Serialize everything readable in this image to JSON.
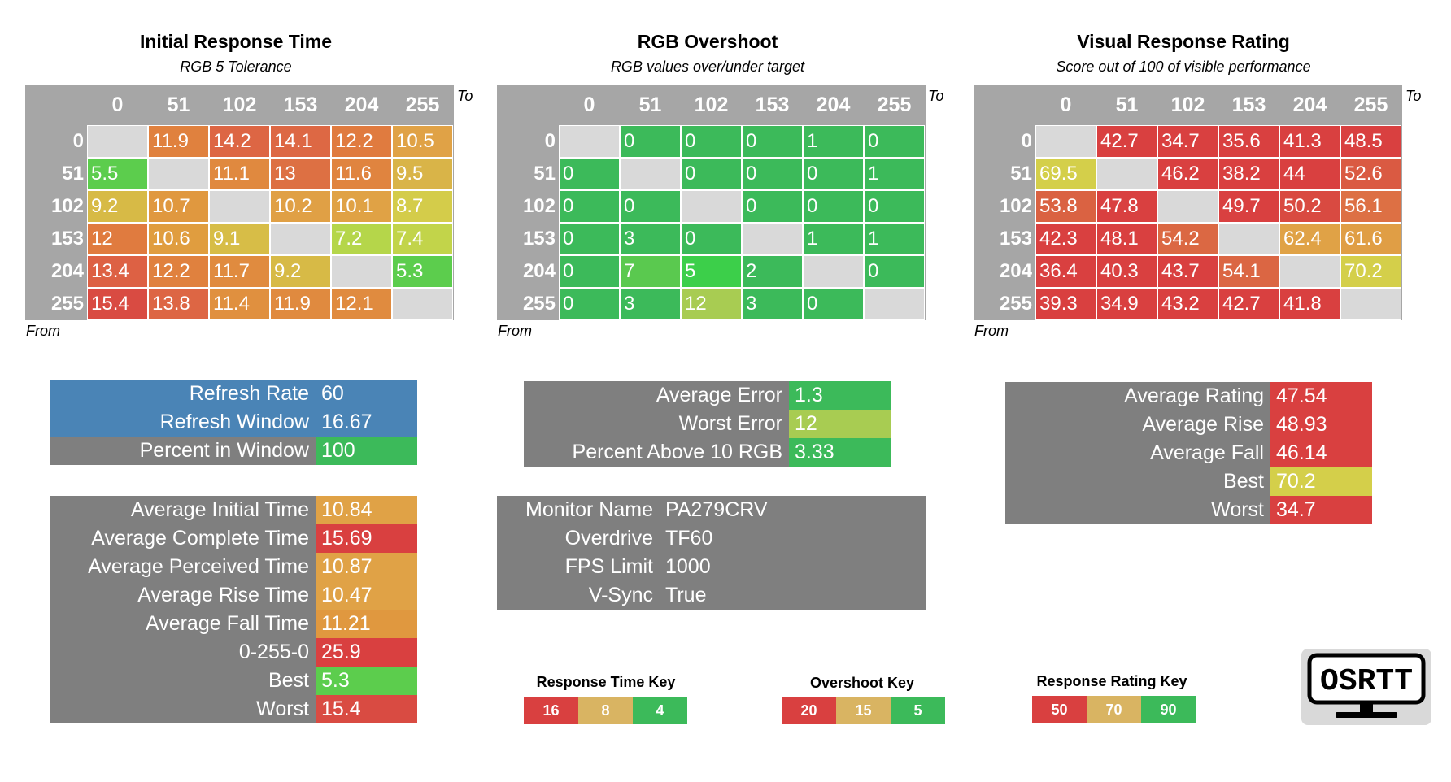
{
  "colors": {
    "grey": "#7f7f7f",
    "header_grey": "#a6a6a6",
    "diag": "#d9d9d9",
    "blue": "#4a84b6",
    "red": "#d94040",
    "orange": "#e0813e",
    "amber": "#d9a645",
    "yellow": "#d4cf4a",
    "green": "#3cba5a"
  },
  "sections": {
    "initial": {
      "title": "Initial Response Time",
      "subtitle": "RGB 5 Tolerance"
    },
    "overshoot": {
      "title": "RGB Overshoot",
      "subtitle": "RGB values over/under target"
    },
    "visual": {
      "title": "Visual Response Rating",
      "subtitle": "Score out of 100 of visible performance"
    }
  },
  "axis": {
    "levels": [
      "0",
      "51",
      "102",
      "153",
      "204",
      "255"
    ],
    "to_label": "To",
    "from_label": "From"
  },
  "matrices": {
    "initial": [
      [
        null,
        "11.9",
        "14.2",
        "14.1",
        "12.2",
        "10.5"
      ],
      [
        "5.5",
        null,
        "11.1",
        "13",
        "11.6",
        "9.5"
      ],
      [
        "9.2",
        "10.7",
        null,
        "10.2",
        "10.1",
        "8.7"
      ],
      [
        "12",
        "10.6",
        "9.1",
        null,
        "7.2",
        "7.4"
      ],
      [
        "13.4",
        "12.2",
        "11.7",
        "9.2",
        null,
        "5.3"
      ],
      [
        "15.4",
        "13.8",
        "11.4",
        "11.9",
        "12.1",
        null
      ]
    ],
    "initial_colors": [
      [
        null,
        "#e0813e",
        "#dd6644",
        "#dd6844",
        "#e07b3f",
        "#e0a246"
      ],
      [
        "#5ccd4d",
        null,
        "#e0893f",
        "#dd7043",
        "#e0843f",
        "#d9b448"
      ],
      [
        "#d7ba46",
        "#e0983f",
        null,
        "#e0a045",
        "#e0a245",
        "#d4cc4a"
      ],
      [
        "#e07b3f",
        "#e09d3f",
        "#d7bd47",
        null,
        "#b5d64a",
        "#c2d44a"
      ],
      [
        "#dd6144",
        "#e0813e",
        "#e08b3f",
        "#d7ba46",
        null,
        "#5ccd4d"
      ],
      [
        "#d94b42",
        "#dd6644",
        "#e0903f",
        "#e08a3f",
        "#e08b3f",
        null
      ]
    ],
    "overshoot": [
      [
        null,
        "0",
        "0",
        "0",
        "1",
        "0"
      ],
      [
        "0",
        null,
        "0",
        "0",
        "0",
        "1"
      ],
      [
        "0",
        "0",
        null,
        "0",
        "0",
        "0"
      ],
      [
        "0",
        "3",
        "0",
        null,
        "1",
        "1"
      ],
      [
        "0",
        "7",
        "5",
        "2",
        null,
        "0"
      ],
      [
        "0",
        "3",
        "12",
        "3",
        "0",
        null
      ]
    ],
    "overshoot_colors": [
      [
        null,
        "#3cba5a",
        "#3cba5a",
        "#3cba5a",
        "#3cba5a",
        "#3cba5a"
      ],
      [
        "#3cba5a",
        null,
        "#3cba5a",
        "#3cba5a",
        "#3cba5a",
        "#3cba5a"
      ],
      [
        "#3cba5a",
        "#3cba5a",
        null,
        "#3cba5a",
        "#3cba5a",
        "#3cba5a"
      ],
      [
        "#3cba5a",
        "#3cba5a",
        "#3cba5a",
        null,
        "#3cba5a",
        "#3cba5a"
      ],
      [
        "#3cba5a",
        "#5ac94f",
        "#3ccf4a",
        "#3cba5a",
        null,
        "#3cba5a"
      ],
      [
        "#3cba5a",
        "#3cba5a",
        "#a8cc52",
        "#3cba5a",
        "#3cba5a",
        null
      ]
    ],
    "visual": [
      [
        null,
        "42.7",
        "34.7",
        "35.6",
        "41.3",
        "48.5"
      ],
      [
        "69.5",
        null,
        "46.2",
        "38.2",
        "44",
        "52.6"
      ],
      [
        "53.8",
        "47.8",
        null,
        "49.7",
        "50.2",
        "56.1"
      ],
      [
        "42.3",
        "48.1",
        "54.2",
        null,
        "62.4",
        "61.6"
      ],
      [
        "36.4",
        "40.3",
        "43.7",
        "54.1",
        null,
        "70.2"
      ],
      [
        "39.3",
        "34.9",
        "43.2",
        "42.7",
        "41.8",
        null
      ]
    ],
    "visual_colors": [
      [
        null,
        "#d94040",
        "#d94040",
        "#d94040",
        "#d94040",
        "#d94040"
      ],
      [
        "#d4cf4a",
        null,
        "#d94040",
        "#d94040",
        "#d94040",
        "#da5a42"
      ],
      [
        "#da6242",
        "#d94040",
        null,
        "#d94040",
        "#d94a41",
        "#dd7044"
      ],
      [
        "#d94040",
        "#d94040",
        "#db6843",
        null,
        "#e0a246",
        "#e09e45"
      ],
      [
        "#d94040",
        "#d94040",
        "#d94040",
        "#db6643",
        null,
        "#d4cf4a"
      ],
      [
        "#d94040",
        "#d94040",
        "#d94040",
        "#d94040",
        "#d94040",
        null
      ]
    ]
  },
  "refresh_box": {
    "rows": [
      {
        "label": "Refresh Rate",
        "value": "60",
        "label_color": "#4a84b6",
        "value_color": "#4a84b6"
      },
      {
        "label": "Refresh Window",
        "value": "16.67",
        "label_color": "#4a84b6",
        "value_color": "#4a84b6"
      },
      {
        "label": "Percent in Window",
        "value": "100",
        "label_color": "#7f7f7f",
        "value_color": "#3cba5a"
      }
    ]
  },
  "time_box": {
    "rows": [
      {
        "label": "Average Initial Time",
        "value": "10.84",
        "value_color": "#e0a246"
      },
      {
        "label": "Average Complete Time",
        "value": "15.69",
        "value_color": "#d94040"
      },
      {
        "label": "Average Perceived Time",
        "value": "10.87",
        "value_color": "#e0a246"
      },
      {
        "label": "Average Rise Time",
        "value": "10.47",
        "value_color": "#e0a246"
      },
      {
        "label": "Average Fall Time",
        "value": "11.21",
        "value_color": "#e0983f"
      },
      {
        "label": "0-255-0",
        "value": "25.9",
        "value_color": "#d94040"
      },
      {
        "label": "Best",
        "value": "5.3",
        "value_color": "#5ccd4d"
      },
      {
        "label": "Worst",
        "value": "15.4",
        "value_color": "#d94b42"
      }
    ]
  },
  "error_box": {
    "rows": [
      {
        "label": "Average Error",
        "value": "1.3",
        "value_color": "#3cba5a"
      },
      {
        "label": "Worst Error",
        "value": "12",
        "value_color": "#a8cc52"
      },
      {
        "label": "Percent Above 10 RGB",
        "value": "3.33",
        "value_color": "#3cba5a"
      }
    ]
  },
  "monitor_box": {
    "rows": [
      {
        "label": "Monitor Name",
        "value": "PA279CRV"
      },
      {
        "label": "Overdrive",
        "value": "TF60"
      },
      {
        "label": "FPS Limit",
        "value": "1000"
      },
      {
        "label": "V-Sync",
        "value": "True"
      }
    ]
  },
  "rating_box": {
    "rows": [
      {
        "label": "Average Rating",
        "value": "47.54",
        "value_color": "#d94040"
      },
      {
        "label": "Average Rise",
        "value": "48.93",
        "value_color": "#d94040"
      },
      {
        "label": "Average Fall",
        "value": "46.14",
        "value_color": "#d94040"
      },
      {
        "label": "Best",
        "value": "70.2",
        "value_color": "#d4cf4a"
      },
      {
        "label": "Worst",
        "value": "34.7",
        "value_color": "#d94040"
      }
    ]
  },
  "keys": {
    "response_time": {
      "title": "Response Time Key",
      "cells": [
        {
          "value": "16",
          "color": "#d94040"
        },
        {
          "value": "8",
          "color": "#d9b462"
        },
        {
          "value": "4",
          "color": "#3cba5a"
        }
      ]
    },
    "overshoot": {
      "title": "Overshoot Key",
      "cells": [
        {
          "value": "20",
          "color": "#d94040"
        },
        {
          "value": "15",
          "color": "#d9b462"
        },
        {
          "value": "5",
          "color": "#3cba5a"
        }
      ]
    },
    "response_rating": {
      "title": "Response Rating Key",
      "cells": [
        {
          "value": "50",
          "color": "#d94040"
        },
        {
          "value": "70",
          "color": "#d9b462"
        },
        {
          "value": "90",
          "color": "#3cba5a"
        }
      ]
    }
  },
  "logo": {
    "text": "OSRTT",
    "icon": "monitor-icon"
  }
}
